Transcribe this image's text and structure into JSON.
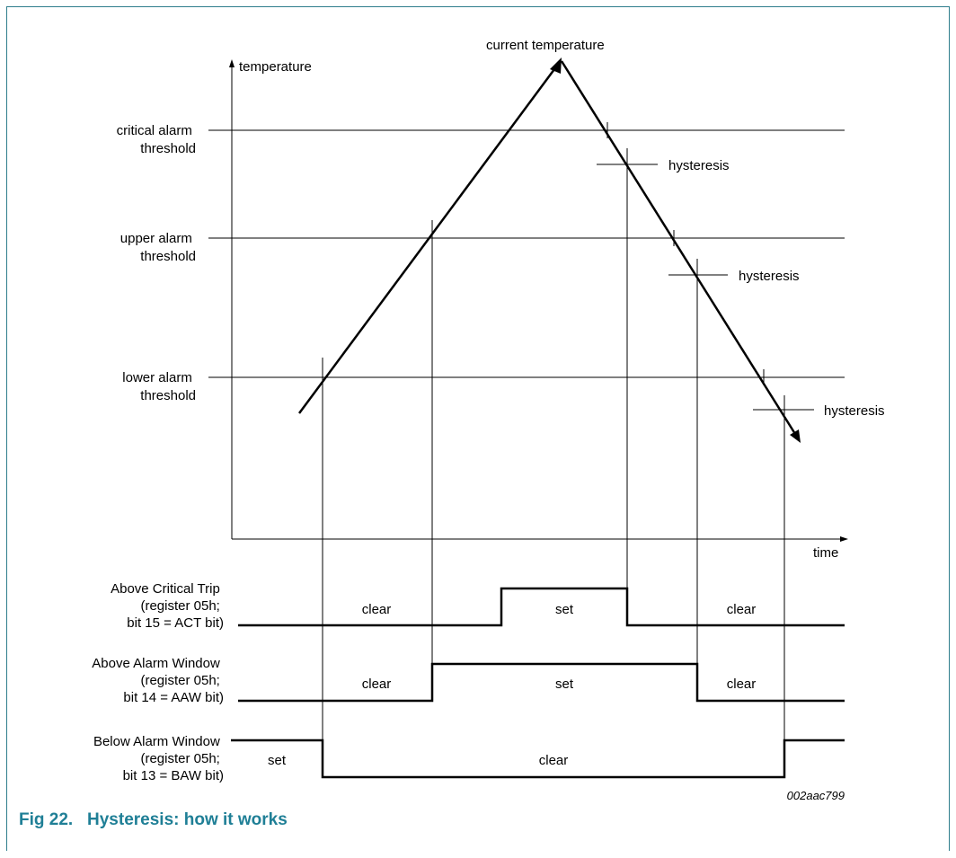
{
  "diagram": {
    "y_axis_label": "temperature",
    "x_axis_label": "time",
    "peak_label": "current  temperature",
    "thresholds": [
      {
        "line1": "critical alarm",
        "line2": "threshold"
      },
      {
        "line1": "upper alarm",
        "line2": "threshold"
      },
      {
        "line1": "lower alarm",
        "line2": "threshold"
      }
    ],
    "hysteresis_labels": [
      "hysteresis",
      "hysteresis",
      "hysteresis"
    ],
    "signals": [
      {
        "name": "Above Critical Trip",
        "detail1": "(register 05h;",
        "detail2": "bit 15 = ACT bit)",
        "segments": [
          "clear",
          "set",
          "clear"
        ]
      },
      {
        "name": "Above Alarm Window",
        "detail1": "(register 05h;",
        "detail2": "bit 14 = AAW bit)",
        "segments": [
          "clear",
          "set",
          "clear"
        ]
      },
      {
        "name": "Below Alarm Window",
        "detail1": "(register 05h;",
        "detail2": "bit 13 = BAW bit)",
        "segments": [
          "set",
          "clear"
        ]
      }
    ],
    "figure_code": "002aac799"
  },
  "caption": "Fig 22.   Hysteresis: how it works"
}
